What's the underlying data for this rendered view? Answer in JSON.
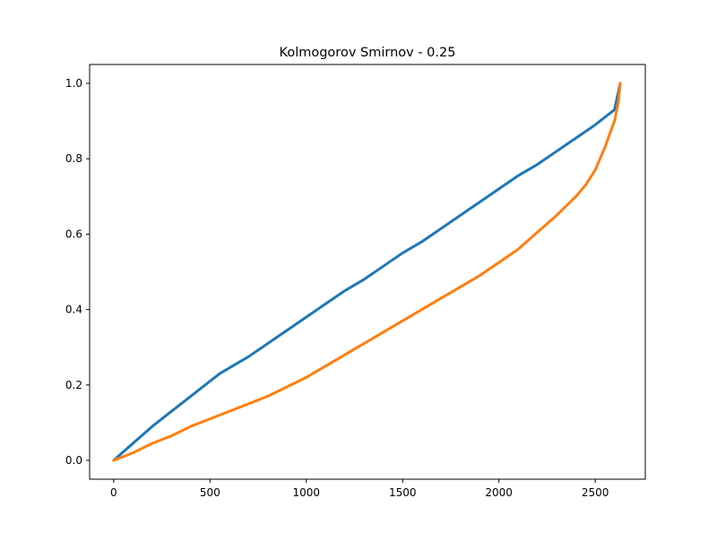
{
  "chart_data": {
    "type": "line",
    "title": "Kolmogorov Smirnov - 0.25",
    "xlabel": "",
    "ylabel": "",
    "xlim": [
      -125,
      2760
    ],
    "ylim": [
      -0.05,
      1.05
    ],
    "x_ticks": [
      0,
      500,
      1000,
      1500,
      2000,
      2500
    ],
    "y_ticks": [
      0.0,
      0.2,
      0.4,
      0.6,
      0.8,
      1.0
    ],
    "x_tick_labels": [
      "0",
      "500",
      "1000",
      "1500",
      "2000",
      "2500"
    ],
    "y_tick_labels": [
      "0.0",
      "0.2",
      "0.4",
      "0.6",
      "0.8",
      "1.0"
    ],
    "grid": false,
    "legend": "none",
    "series": [
      {
        "color": "#1f77b4",
        "x": [
          0,
          100,
          200,
          300,
          400,
          500,
          550,
          600,
          700,
          800,
          900,
          1000,
          1100,
          1200,
          1300,
          1400,
          1500,
          1600,
          1700,
          1800,
          1900,
          2000,
          2100,
          2200,
          2300,
          2400,
          2500,
          2600,
          2630
        ],
        "y": [
          0.0,
          0.045,
          0.09,
          0.13,
          0.17,
          0.21,
          0.23,
          0.245,
          0.275,
          0.31,
          0.345,
          0.38,
          0.415,
          0.45,
          0.48,
          0.515,
          0.55,
          0.58,
          0.615,
          0.65,
          0.685,
          0.72,
          0.755,
          0.785,
          0.82,
          0.855,
          0.89,
          0.93,
          1.0
        ]
      },
      {
        "color": "#ff7f0e",
        "x": [
          0,
          100,
          200,
          300,
          400,
          500,
          600,
          700,
          800,
          900,
          1000,
          1100,
          1200,
          1300,
          1400,
          1500,
          1600,
          1700,
          1800,
          1900,
          2000,
          2100,
          2200,
          2300,
          2400,
          2450,
          2500,
          2550,
          2600,
          2620,
          2630
        ],
        "y": [
          0.0,
          0.02,
          0.045,
          0.065,
          0.09,
          0.11,
          0.13,
          0.15,
          0.17,
          0.195,
          0.22,
          0.25,
          0.28,
          0.31,
          0.34,
          0.37,
          0.4,
          0.43,
          0.46,
          0.49,
          0.525,
          0.56,
          0.605,
          0.65,
          0.7,
          0.73,
          0.77,
          0.83,
          0.9,
          0.95,
          1.0
        ]
      }
    ]
  }
}
